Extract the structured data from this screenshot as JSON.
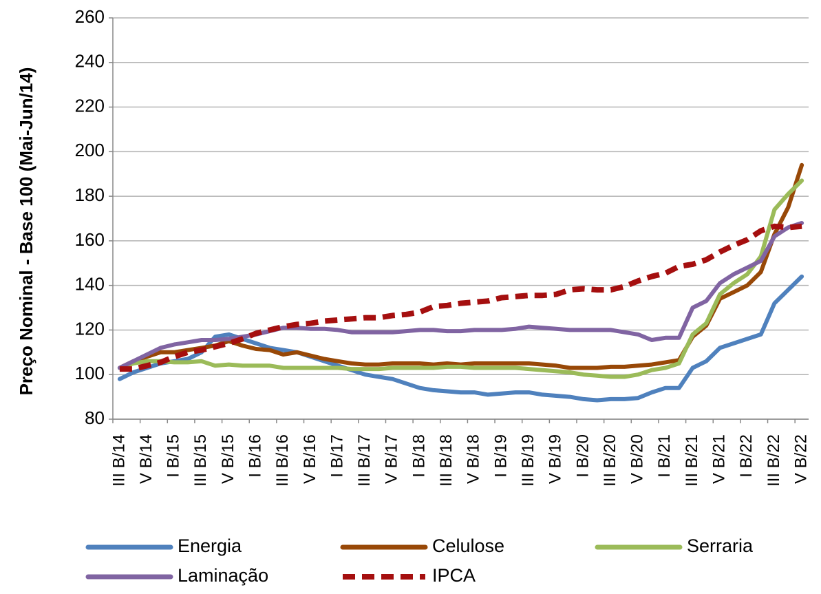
{
  "chart_data": {
    "type": "line",
    "y_label": "Preço Nominal - Base 100 (Mai-Jun/14)",
    "categories": [
      "III B/14",
      null,
      "V B/14",
      null,
      "I B/15",
      null,
      "III B/15",
      null,
      "V B/15",
      null,
      "I B/16",
      null,
      "III B/16",
      null,
      "V B/16",
      null,
      "I B/17",
      null,
      "III B/17",
      null,
      "V B/17",
      null,
      "I B/18",
      null,
      "III B/18",
      null,
      "V B/18",
      null,
      "I B/19",
      null,
      "III B/19",
      null,
      "V B/19",
      null,
      "I B/20",
      null,
      "III B/20",
      null,
      "V B/20",
      null,
      "I B/21",
      null,
      "III B/21",
      null,
      "V B/21",
      null,
      "I B/22",
      null,
      "III B/22",
      null,
      "V B/22"
    ],
    "ylim": [
      80,
      260
    ],
    "yticks": [
      80,
      100,
      120,
      140,
      160,
      180,
      200,
      220,
      240,
      260
    ],
    "grid": true,
    "legend": "bottom",
    "series": [
      {
        "name": "Energia",
        "color": "#4f81bd",
        "style": "solid",
        "values": [
          98,
          101,
          103,
          105,
          106,
          107,
          110,
          117,
          118,
          116,
          114,
          112,
          111,
          110,
          108,
          106,
          104,
          102,
          100,
          99,
          98,
          96,
          94,
          93,
          92.5,
          92,
          92,
          91,
          91.5,
          92,
          92,
          91,
          90.5,
          90,
          89,
          88.5,
          89,
          89,
          89.5,
          92,
          94,
          94,
          103,
          106,
          112,
          114,
          116,
          118,
          132,
          138,
          144
        ]
      },
      {
        "name": "Celulose",
        "color": "#984807",
        "style": "solid",
        "values": [
          103,
          106,
          108,
          110,
          110,
          111,
          112,
          113,
          115,
          113,
          111.5,
          111,
          109,
          110,
          108.5,
          107,
          106,
          105,
          104.5,
          104.5,
          105,
          105,
          105,
          104.5,
          105,
          104.5,
          105,
          105,
          105,
          105,
          105,
          104.5,
          104,
          103,
          103,
          103,
          103.5,
          103.5,
          104,
          104.5,
          105.5,
          106.5,
          117,
          122,
          134,
          137,
          140,
          146,
          163,
          175,
          194
        ]
      },
      {
        "name": "Serraria",
        "color": "#9bbb59",
        "style": "solid",
        "values": [
          103,
          105,
          106,
          106,
          105.5,
          105.5,
          106,
          104,
          104.5,
          104,
          104,
          104,
          103,
          103,
          103,
          103,
          103,
          102.5,
          102.5,
          102.5,
          103,
          103,
          103,
          103,
          103.5,
          103.5,
          103,
          103,
          103,
          103,
          102.5,
          102,
          101.5,
          101,
          100,
          99.5,
          99,
          99,
          100,
          102,
          103,
          105,
          118,
          123,
          136,
          141,
          145,
          153,
          174,
          181,
          187
        ]
      },
      {
        "name": "Laminação",
        "color": "#8064a2",
        "style": "solid",
        "values": [
          103,
          106,
          109,
          112,
          113.5,
          114.5,
          115.5,
          115.5,
          116,
          117,
          118,
          119.5,
          121,
          121,
          120.5,
          120.5,
          120,
          119,
          119,
          119,
          119,
          119.5,
          120,
          120,
          119.5,
          119.5,
          120,
          120,
          120,
          120.5,
          121.5,
          121,
          120.5,
          120,
          120,
          120,
          120,
          119,
          118,
          115.5,
          116.5,
          116.5,
          130,
          133,
          141,
          145,
          148,
          151,
          162,
          166,
          168
        ]
      },
      {
        "name": "IPCA",
        "color": "#a50f0f",
        "style": "dashed",
        "values": [
          102.5,
          102.5,
          104,
          105.5,
          108,
          110,
          111,
          112.5,
          114,
          116,
          118.5,
          120,
          121.5,
          122.5,
          123,
          124,
          124.5,
          125,
          125.5,
          125.5,
          126.5,
          127,
          128,
          130.5,
          131,
          132,
          132.5,
          133,
          134.5,
          135,
          135.5,
          135.5,
          136,
          138,
          138.5,
          138,
          138,
          139.5,
          142,
          144,
          145.5,
          148.5,
          149.5,
          151.5,
          155,
          158,
          160.5,
          164.5,
          166.5,
          166,
          166.5
        ]
      }
    ]
  }
}
